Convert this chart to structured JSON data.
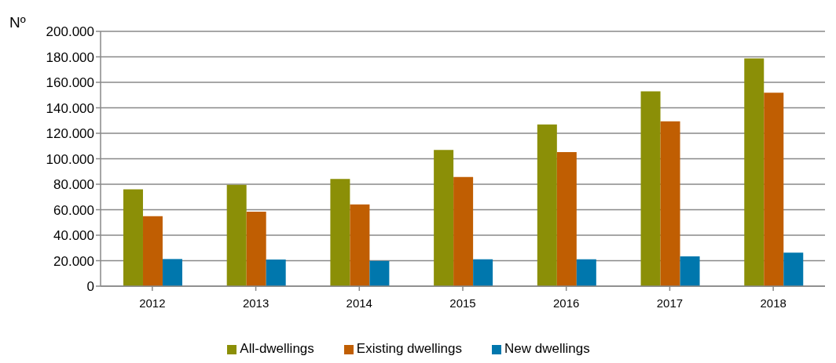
{
  "chart_data": {
    "type": "bar",
    "ylabel": "Nº",
    "categories": [
      "2012",
      "2013",
      "2014",
      "2015",
      "2016",
      "2017",
      "2018"
    ],
    "series": [
      {
        "name": "All-dwellings",
        "color": "#8b8f07",
        "values": [
          76000,
          79500,
          84200,
          107000,
          126900,
          153000,
          178700
        ]
      },
      {
        "name": "Existing dwellings",
        "color": "#c05e02",
        "values": [
          55000,
          58400,
          64100,
          85700,
          105300,
          129400,
          151900
        ]
      },
      {
        "name": "New dwellings",
        "color": "#0077ad",
        "values": [
          21300,
          20900,
          19800,
          21100,
          21100,
          23400,
          26300
        ]
      }
    ],
    "ylim": [
      0,
      200000
    ],
    "yticks": [
      {
        "value": 0,
        "label": "0"
      },
      {
        "value": 20000,
        "label": "20.000"
      },
      {
        "value": 40000,
        "label": "40.000"
      },
      {
        "value": 60000,
        "label": "60.000"
      },
      {
        "value": 80000,
        "label": "80.000"
      },
      {
        "value": 100000,
        "label": "100.000"
      },
      {
        "value": 120000,
        "label": "120.000"
      },
      {
        "value": 140000,
        "label": "140.000"
      },
      {
        "value": 160000,
        "label": "160.000"
      },
      {
        "value": 180000,
        "label": "180.000"
      },
      {
        "value": 200000,
        "label": "200.000"
      }
    ],
    "grid": "y",
    "legend": "bottom"
  }
}
